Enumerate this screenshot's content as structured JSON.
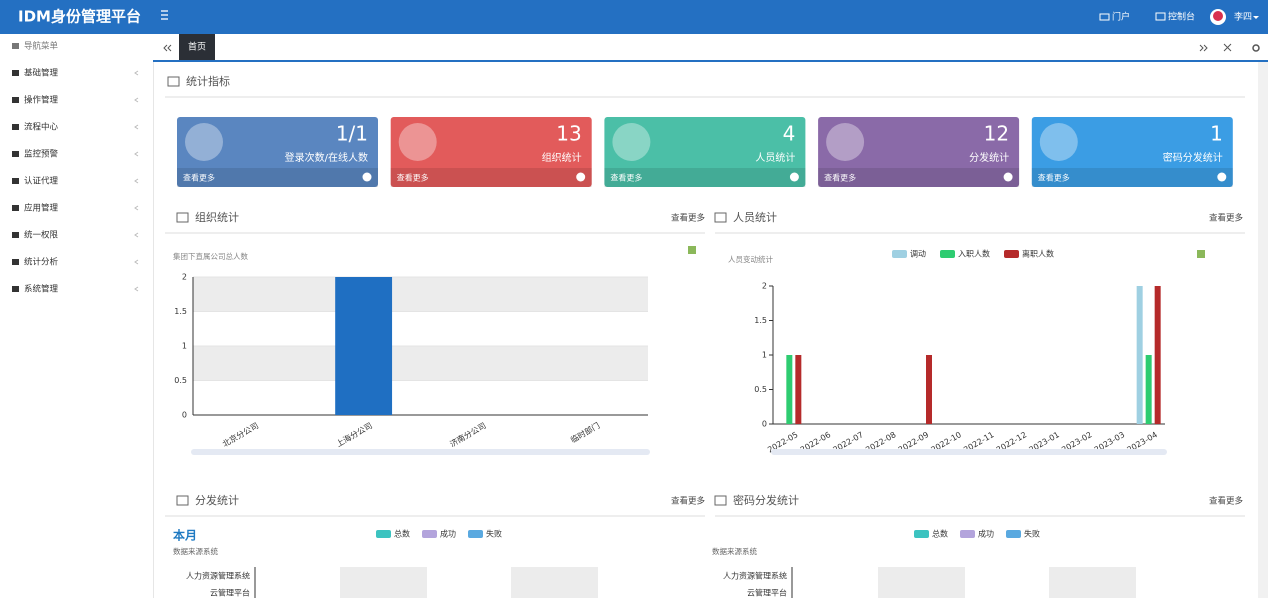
{
  "header": {
    "title": "IDM身份管理平台",
    "portal": "门户",
    "console": "控制台",
    "user": "李四"
  },
  "sidebar": {
    "items": [
      "导航菜单",
      "基础管理",
      "操作管理",
      "流程中心",
      "监控预警",
      "认证代理",
      "应用管理",
      "统一权限",
      "统计分析",
      "系统管理"
    ]
  },
  "tabs": {
    "items": [
      "首页"
    ]
  },
  "stats_title": "统计指标",
  "cards": [
    {
      "value": "1/1",
      "label": "登录次数/在线人数",
      "more": "查看更多",
      "color": "#5a86c0"
    },
    {
      "value": "13",
      "label": "组织统计",
      "more": "查看更多",
      "color": "#e25b5b"
    },
    {
      "value": "4",
      "label": "人员统计",
      "more": "查看更多",
      "color": "#4bbfa7"
    },
    {
      "value": "12",
      "label": "分发统计",
      "more": "查看更多",
      "color": "#8a6aa8"
    },
    {
      "value": "1",
      "label": "密码分发统计",
      "more": "查看更多",
      "color": "#3b9de4"
    }
  ],
  "chart_data": [
    {
      "type": "bar",
      "title": "组织统计",
      "more": "查看更多",
      "subtitle": "集团下直属公司总人数",
      "categories": [
        "北京分公司",
        "上海分公司",
        "济南分公司",
        "临时部门"
      ],
      "series": [
        {
          "color": "#1f6fc2",
          "values": [
            0,
            2,
            0,
            0
          ]
        }
      ],
      "ylim": [
        0,
        2
      ],
      "yticks": [
        0,
        0.5,
        1,
        1.5,
        2
      ],
      "grid": true
    },
    {
      "type": "bar",
      "title": "人员统计",
      "more": "查看更多",
      "subtitle": "人员变动统计",
      "categories": [
        "2022-05",
        "2022-06",
        "2022-07",
        "2022-08",
        "2022-09",
        "2022-10",
        "2022-11",
        "2022-12",
        "2023-01",
        "2023-02",
        "2023-03",
        "2023-04"
      ],
      "series": [
        {
          "name": "调动",
          "color": "#9fd0e2",
          "values": [
            0,
            0,
            0,
            0,
            0,
            0,
            0,
            0,
            0,
            0,
            0,
            2
          ]
        },
        {
          "name": "入职人数",
          "color": "#2ecc71",
          "values": [
            1,
            0,
            0,
            0,
            0,
            0,
            0,
            0,
            0,
            0,
            0,
            1
          ]
        },
        {
          "name": "离职人数",
          "color": "#b52a2a",
          "values": [
            1,
            0,
            0,
            0,
            1,
            0,
            0,
            0,
            0,
            0,
            0,
            2
          ]
        }
      ],
      "ylim": [
        0,
        2
      ],
      "yticks": [
        0,
        0.5,
        1,
        1.5,
        2
      ],
      "grid": false
    }
  ],
  "bottom": [
    {
      "title": "分发统计",
      "more": "查看更多",
      "period": "本月",
      "axis_label": "数据来源系统",
      "legend": [
        {
          "name": "总数",
          "color": "#3cc3c0"
        },
        {
          "name": "成功",
          "color": "#b3a4dc"
        },
        {
          "name": "失败",
          "color": "#5aa9e0"
        }
      ],
      "categories": [
        "人力资源管理系统",
        "云管理平台"
      ]
    },
    {
      "title": "密码分发统计",
      "more": "查看更多",
      "axis_label": "数据来源系统",
      "legend": [
        {
          "name": "总数",
          "color": "#3cc3c0"
        },
        {
          "name": "成功",
          "color": "#b3a4dc"
        },
        {
          "name": "失败",
          "color": "#5aa9e0"
        }
      ],
      "categories": [
        "人力资源管理系统",
        "云管理平台"
      ]
    }
  ]
}
